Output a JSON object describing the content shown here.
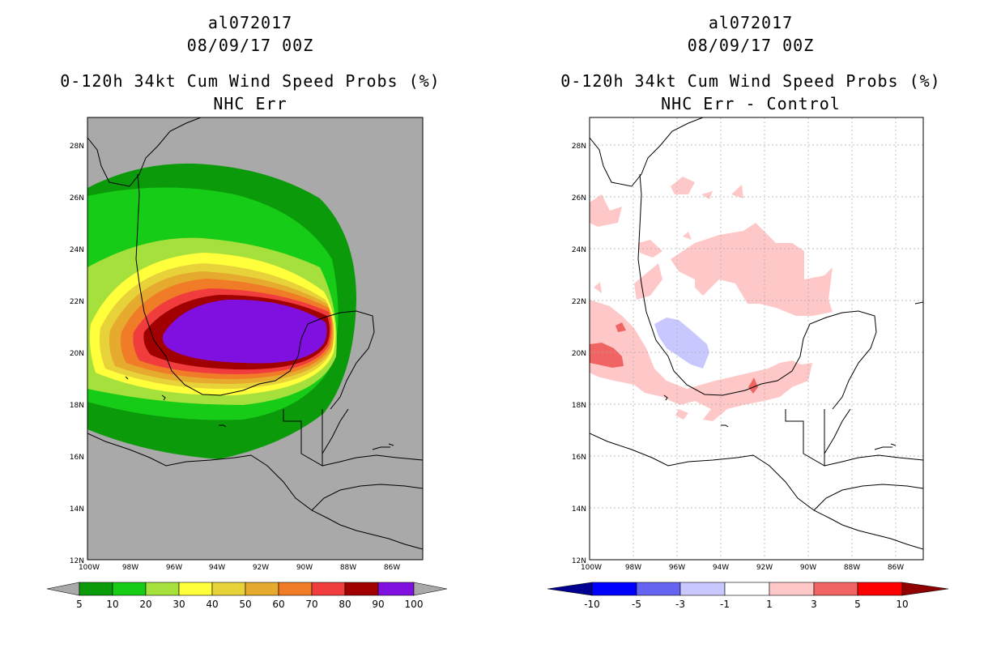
{
  "panels": [
    {
      "storm_id": "al072017",
      "datetime": "08/09/17 00Z",
      "product": "0-120h 34kt Cum Wind Speed Probs (%)",
      "subtitle": "NHC Err",
      "lat_labels": [
        "28N",
        "26N",
        "24N",
        "22N",
        "20N",
        "18N",
        "16N",
        "14N",
        "12N"
      ],
      "lon_labels": [
        "100W",
        "98W",
        "96W",
        "94W",
        "92W",
        "90W",
        "88W",
        "86W"
      ],
      "colorbar": {
        "labels": [
          "5",
          "10",
          "20",
          "30",
          "40",
          "50",
          "60",
          "70",
          "80",
          "90",
          "100"
        ],
        "colors": [
          "#0a9a0a",
          "#16cc16",
          "#a6e03c",
          "#ffff3c",
          "#e8d23a",
          "#e6aa2e",
          "#f07c28",
          "#f03c3c",
          "#a00000",
          "#8010e0"
        ],
        "end_color": "#a9a9a9"
      }
    },
    {
      "storm_id": "al072017",
      "datetime": "08/09/17 00Z",
      "product": "0-120h 34kt Cum Wind Speed Probs (%)",
      "subtitle": "NHC Err - Control",
      "lat_labels": [
        "28N",
        "26N",
        "24N",
        "22N",
        "20N",
        "18N",
        "16N",
        "14N",
        "12N"
      ],
      "lon_labels": [
        "100W",
        "98W",
        "96W",
        "94W",
        "92W",
        "90W",
        "88W",
        "86W"
      ],
      "colorbar": {
        "labels": [
          "-10",
          "-5",
          "-3",
          "-1",
          "1",
          "3",
          "5",
          "10"
        ],
        "colors": [
          "#0000ff",
          "#6464f0",
          "#c8c8ff",
          "#ffffff",
          "#ffc8c8",
          "#f06464",
          "#ff0000"
        ],
        "left_end_color": "#000090",
        "right_end_color": "#900000"
      }
    }
  ]
}
